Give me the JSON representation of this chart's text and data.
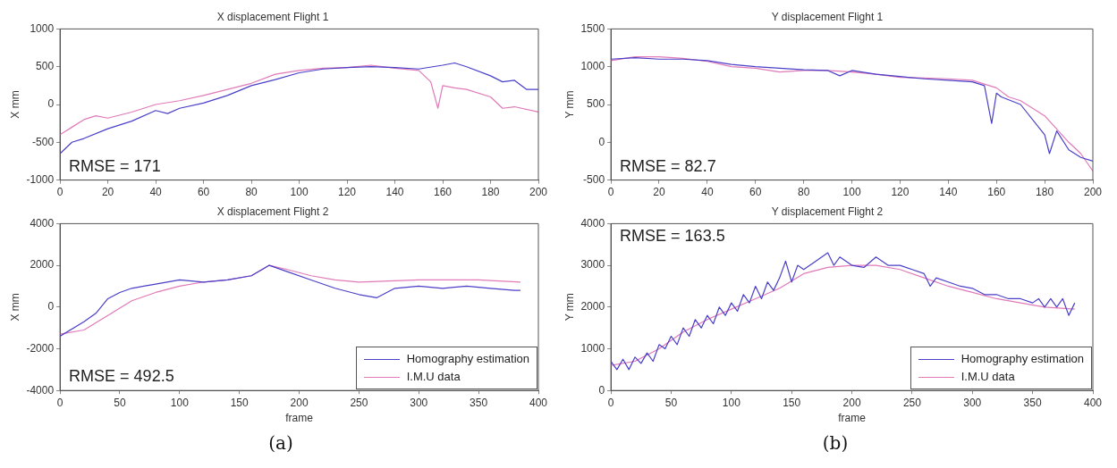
{
  "chart_data": [
    {
      "type": "line",
      "title": "X displacement Flight 1",
      "ylabel": "X mm",
      "xlim": [
        0,
        200
      ],
      "xticks": [
        0,
        20,
        40,
        60,
        80,
        100,
        120,
        140,
        160,
        180,
        200
      ],
      "ylim": [
        -1000,
        1000
      ],
      "yticks": [
        -1000,
        -500,
        0,
        500,
        1000
      ],
      "marker": "none",
      "line_style": "solid",
      "annotations": [
        "RMSE = 171"
      ],
      "series": [
        {
          "color": "#4a3fc8",
          "x": [
            0,
            5,
            10,
            20,
            30,
            40,
            45,
            50,
            60,
            70,
            80,
            90,
            100,
            110,
            120,
            130,
            140,
            150,
            160,
            165,
            170,
            180,
            185,
            190,
            195,
            200
          ],
          "values": [
            -650,
            -500,
            -450,
            -320,
            -220,
            -80,
            -120,
            -50,
            20,
            120,
            250,
            330,
            420,
            470,
            490,
            500,
            490,
            470,
            520,
            550,
            500,
            380,
            300,
            320,
            200,
            200
          ]
        },
        {
          "color": "#e07ab8",
          "x": [
            0,
            5,
            10,
            15,
            20,
            30,
            40,
            50,
            60,
            70,
            80,
            90,
            100,
            110,
            120,
            130,
            140,
            150,
            155,
            158,
            160,
            165,
            170,
            180,
            185,
            190,
            200
          ],
          "values": [
            -400,
            -300,
            -200,
            -150,
            -180,
            -100,
            0,
            50,
            120,
            200,
            280,
            400,
            450,
            480,
            490,
            520,
            480,
            450,
            300,
            -50,
            250,
            220,
            200,
            100,
            -50,
            -30,
            -100
          ]
        }
      ]
    },
    {
      "type": "line",
      "title": "Y displacement Flight 1",
      "ylabel": "Y mm",
      "xlim": [
        0,
        200
      ],
      "xticks": [
        0,
        20,
        40,
        60,
        80,
        100,
        120,
        140,
        160,
        180,
        200
      ],
      "ylim": [
        -500,
        1500
      ],
      "yticks": [
        -500,
        0,
        500,
        1000,
        1500
      ],
      "marker": "none",
      "line_style": "solid",
      "annotations": [
        "RMSE = 82.7"
      ],
      "series": [
        {
          "color": "#4a3fc8",
          "x": [
            0,
            10,
            20,
            30,
            40,
            50,
            60,
            70,
            80,
            90,
            95,
            100,
            110,
            120,
            130,
            140,
            150,
            155,
            158,
            160,
            162,
            170,
            180,
            182,
            185,
            190,
            195,
            200
          ],
          "values": [
            1100,
            1120,
            1100,
            1100,
            1080,
            1030,
            1000,
            980,
            960,
            950,
            880,
            950,
            900,
            870,
            840,
            820,
            800,
            750,
            250,
            650,
            600,
            500,
            100,
            -150,
            150,
            -100,
            -200,
            -250
          ]
        },
        {
          "color": "#e07ab8",
          "x": [
            0,
            10,
            20,
            30,
            40,
            50,
            60,
            70,
            80,
            90,
            100,
            110,
            120,
            130,
            140,
            150,
            160,
            165,
            170,
            180,
            190,
            195,
            200
          ],
          "values": [
            1080,
            1130,
            1130,
            1110,
            1070,
            1000,
            980,
            930,
            950,
            950,
            930,
            900,
            860,
            850,
            840,
            820,
            720,
            600,
            550,
            350,
            0,
            -150,
            -380
          ]
        }
      ]
    },
    {
      "type": "line",
      "title": "X displacement Flight 2",
      "xlabel": "frame",
      "ylabel": "X mm",
      "xlim": [
        0,
        400
      ],
      "xticks": [
        0,
        50,
        100,
        150,
        200,
        250,
        300,
        350,
        400
      ],
      "ylim": [
        -4000,
        4000
      ],
      "yticks": [
        -4000,
        -2000,
        0,
        2000,
        4000
      ],
      "marker": "none",
      "line_style": "solid",
      "legend": "bottom right",
      "annotations": [
        "RMSE = 492.5",
        "(a)"
      ],
      "series": [
        {
          "name": "Homography estimation",
          "color": "#4a3fc8",
          "x": [
            0,
            20,
            30,
            40,
            50,
            60,
            70,
            80,
            100,
            120,
            140,
            160,
            175,
            190,
            210,
            230,
            250,
            265,
            280,
            300,
            320,
            340,
            360,
            380,
            385
          ],
          "values": [
            -1400,
            -700,
            -300,
            400,
            700,
            900,
            1000,
            1100,
            1300,
            1200,
            1300,
            1500,
            2000,
            1700,
            1300,
            900,
            600,
            450,
            900,
            1000,
            900,
            1000,
            900,
            800,
            800
          ]
        },
        {
          "name": "I.M.U data",
          "color": "#e07ab8",
          "x": [
            0,
            20,
            40,
            60,
            80,
            100,
            120,
            140,
            160,
            175,
            190,
            210,
            230,
            250,
            300,
            350,
            385
          ],
          "values": [
            -1300,
            -1100,
            -400,
            300,
            700,
            1000,
            1200,
            1300,
            1500,
            2000,
            1800,
            1500,
            1300,
            1200,
            1300,
            1300,
            1200
          ]
        }
      ]
    },
    {
      "type": "line",
      "title": "Y displacement Flight 2",
      "xlabel": "frame",
      "ylabel": "Y mm",
      "xlim": [
        0,
        400
      ],
      "xticks": [
        0,
        50,
        100,
        150,
        200,
        250,
        300,
        350,
        400
      ],
      "ylim": [
        0,
        4000
      ],
      "yticks": [
        0,
        1000,
        2000,
        3000,
        4000
      ],
      "marker": "none",
      "line_style": "solid",
      "legend": "bottom right",
      "annotations": [
        "RMSE = 163.5",
        "(b)"
      ],
      "series": [
        {
          "name": "Homography estimation",
          "color": "#4a3fc8",
          "x": [
            0,
            5,
            10,
            15,
            20,
            25,
            30,
            35,
            40,
            45,
            50,
            55,
            60,
            65,
            70,
            75,
            80,
            85,
            90,
            95,
            100,
            105,
            110,
            115,
            120,
            125,
            130,
            135,
            140,
            145,
            150,
            155,
            160,
            170,
            180,
            185,
            190,
            200,
            210,
            220,
            230,
            240,
            250,
            260,
            265,
            270,
            280,
            290,
            300,
            310,
            320,
            330,
            340,
            350,
            355,
            360,
            365,
            370,
            375,
            380,
            385
          ],
          "values": [
            700,
            500,
            750,
            500,
            800,
            650,
            900,
            700,
            1100,
            1000,
            1300,
            1100,
            1500,
            1300,
            1700,
            1500,
            1800,
            1600,
            2000,
            1800,
            2100,
            1900,
            2300,
            2100,
            2500,
            2200,
            2600,
            2400,
            2700,
            3100,
            2600,
            3000,
            2900,
            3100,
            3300,
            3000,
            3200,
            3000,
            2950,
            3200,
            3000,
            3000,
            2900,
            2800,
            2500,
            2700,
            2600,
            2500,
            2450,
            2300,
            2300,
            2200,
            2200,
            2100,
            2200,
            2000,
            2200,
            2000,
            2200,
            1800,
            2100
          ]
        },
        {
          "name": "I.M.U data",
          "color": "#e07ab8",
          "x": [
            0,
            20,
            40,
            60,
            80,
            100,
            120,
            140,
            160,
            180,
            200,
            220,
            240,
            260,
            280,
            300,
            320,
            340,
            360,
            385
          ],
          "values": [
            600,
            700,
            1000,
            1400,
            1700,
            1950,
            2200,
            2450,
            2800,
            2950,
            3000,
            3000,
            2900,
            2700,
            2500,
            2350,
            2200,
            2100,
            2000,
            1950
          ]
        }
      ]
    }
  ]
}
